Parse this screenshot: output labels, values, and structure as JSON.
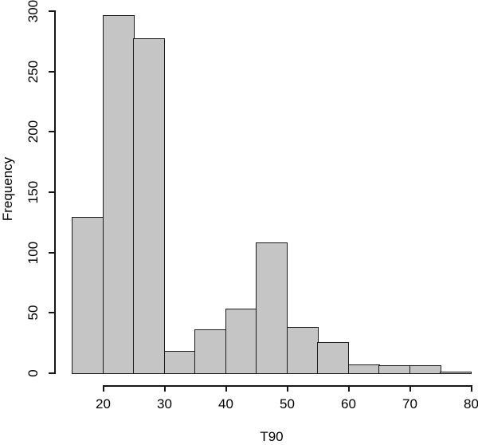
{
  "page": {
    "background": "#ffffff"
  },
  "chart_data": {
    "type": "bar",
    "subtype": "histogram",
    "title": "",
    "xlabel": "T90",
    "ylabel": "Frequency",
    "bin_edges": [
      15,
      20,
      25,
      30,
      35,
      40,
      45,
      50,
      55,
      60,
      65,
      70,
      75,
      80
    ],
    "counts": [
      129,
      296,
      277,
      18,
      36,
      53,
      108,
      38,
      25,
      7,
      6,
      6,
      1
    ],
    "x_ticks": [
      20,
      30,
      40,
      50,
      60,
      70,
      80
    ],
    "y_ticks": [
      0,
      50,
      100,
      150,
      200,
      250,
      300
    ],
    "xlim": [
      15,
      80
    ],
    "ylim": [
      0,
      300
    ],
    "grid": false,
    "legend": null,
    "bar_fill": "#c5c5c5",
    "bar_border": "#1c1c1c",
    "axis_color": "#161616"
  }
}
